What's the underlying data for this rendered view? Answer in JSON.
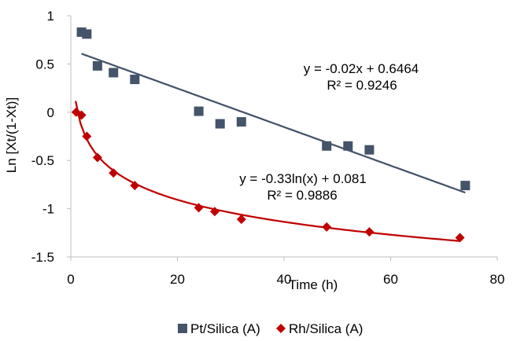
{
  "chart_data": {
    "type": "scatter",
    "xlabel": "Time (h)",
    "ylabel": "Ln [Xt/(1-Xt)]",
    "xlim": [
      0,
      80
    ],
    "ylim": [
      -1.5,
      1
    ],
    "x_ticks": [
      0,
      20,
      40,
      60,
      80
    ],
    "y_ticks": [
      1,
      0.5,
      0,
      -0.5,
      -1,
      -1.5
    ],
    "x_tick_labels": [
      "0",
      "20",
      "40",
      "60",
      "80"
    ],
    "y_tick_labels": [
      "1",
      "0.5",
      "0",
      "-0.5",
      "-1",
      "-1.5"
    ],
    "grid": false,
    "legend": "bottom",
    "series": [
      {
        "name": "Pt/Silica (A)",
        "marker": "square",
        "color": "#44546A",
        "x": [
          2,
          3,
          5,
          8,
          12,
          24,
          28,
          32,
          48,
          52,
          56,
          74
        ],
        "y": [
          0.83,
          0.81,
          0.48,
          0.41,
          0.34,
          0.01,
          -0.12,
          -0.1,
          -0.35,
          -0.35,
          -0.39,
          -0.76
        ],
        "trendline": {
          "kind": "linear",
          "slope": -0.02,
          "intercept": 0.6464,
          "x_range": [
            2,
            74
          ],
          "equation": "y = -0.02x + 0.6464",
          "r2": "R² = 0.9246"
        }
      },
      {
        "name": "Rh/Silica (A)",
        "marker": "diamond",
        "color": "#C00000",
        "x": [
          1,
          2,
          3,
          5,
          8,
          12,
          24,
          27,
          32,
          48,
          56,
          73
        ],
        "y": [
          0.0,
          -0.03,
          -0.25,
          -0.47,
          -0.63,
          -0.76,
          -0.99,
          -1.03,
          -1.11,
          -1.19,
          -1.24,
          -1.3
        ],
        "trendline": {
          "kind": "logarithmic",
          "a": -0.33,
          "b": 0.081,
          "x_range": [
            0.9,
            73
          ],
          "equation": "y = -0.33ln(x) + 0.081",
          "r2": "R² = 0.9886"
        }
      }
    ]
  }
}
